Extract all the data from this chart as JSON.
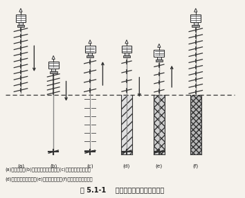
{
  "title": "图 5.1-1    水泥搞拌桦施工程序示意图",
  "caption_line1": "(a)定位下沉；(b)沉入到设计要求深度；(c)第一次提升噴浆搞拌",
  "caption_line2": "(d)原位重复搞拌下沉；(e)提升噴浆搞拌；(f)搞拌完毕形成加固体",
  "labels": [
    "(a)",
    "(b)",
    "(c)",
    "(d)",
    "(e)",
    "(f)"
  ],
  "bg_color": "#f5f2ec",
  "text_color": "#1a1a1a",
  "figure_width": 3.54,
  "figure_height": 2.86
}
